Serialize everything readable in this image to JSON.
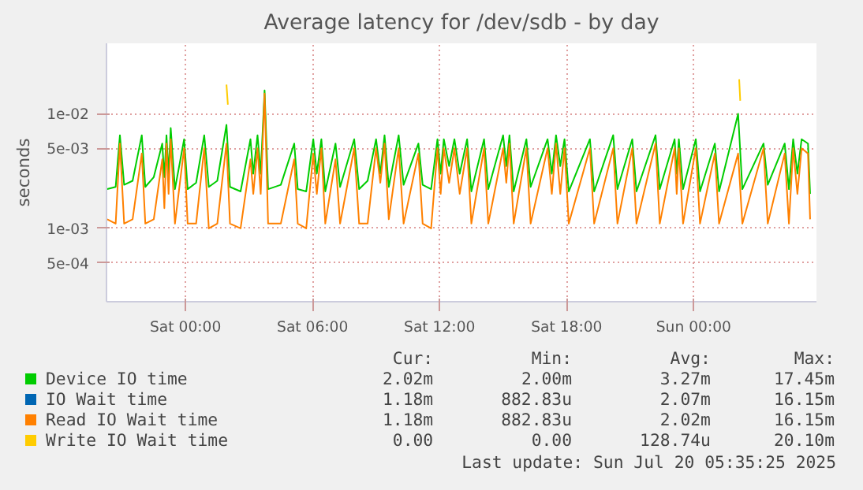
{
  "chart_data": {
    "type": "line",
    "title": "Average latency for /dev/sdb - by day",
    "ylabel": "seconds",
    "log": "y",
    "grid": true,
    "legend": "bottom",
    "marker": "none",
    "line_style": "solid",
    "x": [
      "2025-07-18T20:18",
      "2025-07-18T20:42",
      "2025-07-18T20:54",
      "2025-07-18T21:06",
      "2025-07-18T21:30",
      "2025-07-18T21:56",
      "2025-07-18T22:06",
      "2025-07-18T22:30",
      "2025-07-18T22:54",
      "2025-07-18T23:00",
      "2025-07-18T23:06",
      "2025-07-18T23:12",
      "2025-07-18T23:18",
      "2025-07-18T23:30",
      "2025-07-18T23:56",
      "2025-07-19T00:06",
      "2025-07-19T00:30",
      "2025-07-19T00:53",
      "2025-07-19T01:06",
      "2025-07-19T01:30",
      "2025-07-19T01:56",
      "2025-07-19T02:06",
      "2025-07-19T02:36",
      "2025-07-19T03:04",
      "2025-07-19T03:12",
      "2025-07-19T03:24",
      "2025-07-19T03:33",
      "2025-07-19T03:44",
      "2025-07-19T03:54",
      "2025-07-19T04:30",
      "2025-07-19T05:08",
      "2025-07-19T05:18",
      "2025-07-19T05:42",
      "2025-07-19T06:02",
      "2025-07-19T06:12",
      "2025-07-19T06:25",
      "2025-07-19T06:36",
      "2025-07-19T07:05",
      "2025-07-19T07:18",
      "2025-07-19T07:58",
      "2025-07-19T08:12",
      "2025-07-19T08:36",
      "2025-07-19T09:00",
      "2025-07-19T09:12",
      "2025-07-19T09:24",
      "2025-07-19T09:36",
      "2025-07-19T10:04",
      "2025-07-19T10:18",
      "2025-07-19T11:00",
      "2025-07-19T11:12",
      "2025-07-19T11:36",
      "2025-07-19T11:54",
      "2025-07-19T12:03",
      "2025-07-19T12:12",
      "2025-07-19T12:27",
      "2025-07-19T12:42",
      "2025-07-19T12:57",
      "2025-07-19T13:18",
      "2025-07-19T13:30",
      "2025-07-19T14:06",
      "2025-07-19T14:18",
      "2025-07-19T15:00",
      "2025-07-19T15:09",
      "2025-07-19T15:18",
      "2025-07-19T15:30",
      "2025-07-19T16:06",
      "2025-07-19T16:18",
      "2025-07-19T17:06",
      "2025-07-19T17:18",
      "2025-07-19T17:30",
      "2025-07-19T17:42",
      "2025-07-19T17:54",
      "2025-07-19T18:06",
      "2025-07-19T19:06",
      "2025-07-19T19:18",
      "2025-07-19T20:12",
      "2025-07-19T20:24",
      "2025-07-19T21:06",
      "2025-07-19T21:18",
      "2025-07-19T22:12",
      "2025-07-19T22:24",
      "2025-07-19T23:06",
      "2025-07-19T23:12",
      "2025-07-19T23:18",
      "2025-07-19T23:30",
      "2025-07-20T00:06",
      "2025-07-20T00:18",
      "2025-07-20T01:00",
      "2025-07-20T01:12",
      "2025-07-20T02:06",
      "2025-07-20T02:18",
      "2025-07-20T03:18",
      "2025-07-20T03:30",
      "2025-07-20T04:18",
      "2025-07-20T04:30",
      "2025-07-20T04:42",
      "2025-07-20T04:54",
      "2025-07-20T05:06",
      "2025-07-20T05:24",
      "2025-07-20T05:30"
    ],
    "xlim": [
      "2025-07-18T20:16",
      "2025-07-20T05:48"
    ],
    "xticks": [
      {
        "value": "2025-07-19T00:00",
        "label": "Sat 00:00"
      },
      {
        "value": "2025-07-19T06:00",
        "label": "Sat 06:00"
      },
      {
        "value": "2025-07-19T12:00",
        "label": "Sat 12:00"
      },
      {
        "value": "2025-07-19T18:00",
        "label": "Sat 18:00"
      },
      {
        "value": "2025-07-20T00:00",
        "label": "Sun 00:00"
      }
    ],
    "ylim": [
      0.000229,
      0.0412
    ],
    "yticks": [
      {
        "value": 0.0005,
        "label": "5e-04"
      },
      {
        "value": 0.001,
        "label": "1e-03"
      },
      {
        "value": 0.005,
        "label": "5e-03"
      },
      {
        "value": 0.01,
        "label": "1e-02"
      }
    ],
    "series": [
      {
        "name": "Device IO time",
        "color": "#00cc00",
        "values": [
          0.0022,
          0.0023,
          0.0065,
          0.0024,
          0.0026,
          0.0065,
          0.0023,
          0.0028,
          0.0055,
          0.0028,
          0.0065,
          0.003,
          0.0075,
          0.0022,
          0.006,
          0.0022,
          0.0025,
          0.0065,
          0.0023,
          0.0026,
          0.008,
          0.0023,
          0.0021,
          0.006,
          0.003,
          0.0065,
          0.003,
          0.016,
          0.0022,
          0.0024,
          0.0055,
          0.0022,
          0.0021,
          0.006,
          0.003,
          0.006,
          0.0021,
          0.0055,
          0.0023,
          0.006,
          0.0022,
          0.0026,
          0.006,
          0.003,
          0.0065,
          0.0023,
          0.0065,
          0.0024,
          0.0055,
          0.0024,
          0.0022,
          0.006,
          0.003,
          0.006,
          0.0035,
          0.006,
          0.003,
          0.006,
          0.0021,
          0.006,
          0.0022,
          0.0065,
          0.0035,
          0.0065,
          0.0021,
          0.006,
          0.0023,
          0.006,
          0.003,
          0.0065,
          0.0035,
          0.006,
          0.0021,
          0.006,
          0.0021,
          0.0065,
          0.0022,
          0.006,
          0.0021,
          0.0065,
          0.0022,
          0.006,
          0.003,
          0.006,
          0.0022,
          0.006,
          0.0021,
          0.0055,
          0.0021,
          0.01,
          0.0022,
          0.0055,
          0.0024,
          0.0055,
          0.0022,
          0.006,
          0.003,
          0.006,
          0.0055,
          0.002
        ]
      },
      {
        "name": "IO Wait time",
        "color": "#0066b3",
        "values": [
          null,
          null,
          null,
          null,
          null,
          null,
          null,
          null,
          null,
          null,
          null,
          null,
          null,
          null,
          null,
          null,
          null,
          null,
          null,
          null,
          null,
          null,
          null,
          null,
          null,
          null,
          null,
          null,
          null,
          null,
          null,
          null,
          null,
          null,
          null,
          null,
          null,
          null,
          null,
          null,
          null,
          null,
          null,
          null,
          null,
          null,
          null,
          null,
          null,
          null,
          null,
          null,
          null,
          null,
          null,
          null,
          null,
          null,
          null,
          null,
          null,
          null,
          null,
          null,
          null,
          null,
          null,
          null,
          null,
          null,
          null,
          null,
          null,
          null,
          null,
          null,
          null,
          null,
          null,
          null,
          null,
          null,
          null,
          null,
          null,
          null,
          null,
          null,
          null,
          null,
          null,
          null,
          null,
          null,
          null,
          null,
          null,
          null,
          null,
          null
        ]
      },
      {
        "name": "Read IO Wait time",
        "color": "#ff8000",
        "values": [
          0.0012,
          0.0011,
          0.0055,
          0.0011,
          0.0012,
          0.0045,
          0.0011,
          0.0012,
          0.004,
          0.0015,
          0.0055,
          0.002,
          0.006,
          0.0011,
          0.005,
          0.0011,
          0.0011,
          0.005,
          0.001,
          0.0011,
          0.0055,
          0.0011,
          0.001,
          0.004,
          0.002,
          0.005,
          0.002,
          0.015,
          0.0011,
          0.0011,
          0.004,
          0.0011,
          0.001,
          0.0045,
          0.002,
          0.005,
          0.0011,
          0.004,
          0.0011,
          0.005,
          0.0011,
          0.0011,
          0.005,
          0.0025,
          0.0055,
          0.0012,
          0.005,
          0.0011,
          0.0045,
          0.0011,
          0.001,
          0.005,
          0.002,
          0.005,
          0.0025,
          0.005,
          0.002,
          0.005,
          0.0011,
          0.005,
          0.0011,
          0.005,
          0.0025,
          0.0055,
          0.0011,
          0.005,
          0.0011,
          0.005,
          0.002,
          0.0055,
          0.002,
          0.005,
          0.0011,
          0.005,
          0.0011,
          0.005,
          0.0011,
          0.005,
          0.0011,
          0.0055,
          0.0011,
          0.005,
          0.002,
          0.005,
          0.0011,
          0.005,
          0.0011,
          0.0045,
          0.0011,
          0.0045,
          0.0011,
          0.005,
          0.0011,
          0.0045,
          0.0011,
          0.005,
          0.002,
          0.005,
          0.0045,
          0.0012
        ]
      },
      {
        "name": "Write IO Wait time",
        "color": "#ffcc00",
        "x": [
          "2025-07-19T01:56",
          "2025-07-19T02:00",
          null,
          "2025-07-20T02:09",
          "2025-07-20T02:12"
        ],
        "values": [
          0.018,
          0.012,
          null,
          0.02,
          0.013
        ]
      }
    ],
    "annotations": [
      "Cur:",
      "Min:",
      "Avg:",
      "Max:",
      "2.02m",
      "2.00m",
      "3.27m",
      "17.45m",
      "1.18m",
      "882.83u",
      "2.07m",
      "16.15m",
      "1.18m",
      "882.83u",
      "2.02m",
      "16.15m",
      "0.00",
      "0.00",
      "128.74u",
      "20.10m",
      "Last update: Sun Jul 20 05:35:25 2025"
    ]
  }
}
